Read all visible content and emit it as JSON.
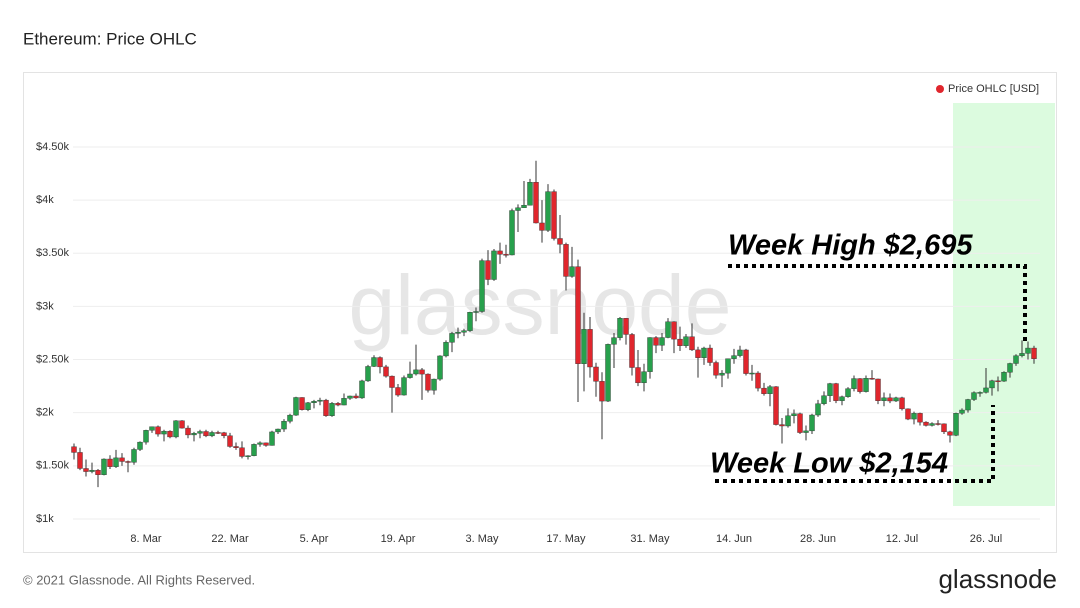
{
  "chart_data": {
    "type": "candlestick",
    "title": "Ethereum: Price OHLC",
    "categories": [
      null,
      null,
      null,
      null,
      null,
      null,
      null,
      null,
      null,
      null,
      null,
      null,
      "8. Mar",
      null,
      null,
      null,
      null,
      null,
      null,
      null,
      null,
      null,
      null,
      null,
      null,
      null,
      "22. Mar",
      null,
      null,
      null,
      null,
      null,
      null,
      null,
      null,
      null,
      null,
      null,
      null,
      null,
      "5. Apr",
      null,
      null,
      null,
      null,
      null,
      null,
      null,
      null,
      null,
      null,
      null,
      null,
      null,
      "19. Apr",
      null,
      null,
      null,
      null,
      null,
      null,
      null,
      null,
      null,
      null,
      null,
      null,
      null,
      "3. May",
      null,
      null,
      null,
      null,
      null,
      null,
      null,
      null,
      null,
      null,
      null,
      null,
      null,
      "17. May",
      null,
      null,
      null,
      null,
      null,
      null,
      null,
      null,
      null,
      null,
      null,
      null,
      null,
      "31. May",
      null,
      null,
      null,
      null,
      null,
      null,
      null,
      null,
      null,
      null,
      null,
      null,
      null,
      "14. Jun",
      null,
      null,
      null,
      null,
      null,
      null,
      null,
      null,
      null,
      null,
      null,
      null,
      null,
      "28. Jun",
      null,
      null,
      null,
      null,
      null,
      null,
      null,
      null,
      null,
      null,
      null,
      null,
      null,
      "12. Jul",
      null,
      null,
      null,
      null,
      null,
      null,
      null,
      null,
      null,
      null,
      null,
      null,
      null,
      "26. Jul",
      null,
      null,
      null,
      null,
      null,
      null,
      null,
      null
    ],
    "series": [
      {
        "name": "Price OHLC [USD]",
        "color": "#e0262d",
        "up_color": "#27a04c",
        "open": [
          1680,
          1626,
          1475,
          1446,
          1459,
          1416,
          1564,
          1492,
          1575,
          1541,
          1533,
          1654,
          1723,
          1834,
          1868,
          1799,
          1826,
          1772,
          1924,
          1855,
          1791,
          1806,
          1823,
          1782,
          1814,
          1812,
          1783,
          1682,
          1670,
          1588,
          1595,
          1702,
          1716,
          1692,
          1819,
          1846,
          1919,
          1977,
          2143,
          2028,
          2093,
          2107,
          2118,
          1971,
          2088,
          2072,
          2135,
          2157,
          2139,
          2299,
          2435,
          2519,
          2431,
          2344,
          2237,
          2166,
          2330,
          2364,
          2403,
          2363,
          2211,
          2316,
          2534,
          2662,
          2746,
          2757,
          2772,
          2945,
          2952,
          3431,
          3253,
          3522,
          3490,
          3484,
          3902,
          3928,
          3952,
          4168,
          3785,
          3715,
          4080,
          3639,
          3584,
          3282,
          3374,
          2460,
          2784,
          2430,
          2295,
          2109,
          2643,
          2706,
          2888,
          2736,
          2425,
          2281,
          2386,
          2707,
          2634,
          2707,
          2856,
          2692,
          2630,
          2715,
          2591,
          2517,
          2608,
          2472,
          2353,
          2372,
          2508,
          2537,
          2590,
          2368,
          2373,
          2231,
          2178,
          2245,
          1888,
          1875,
          1971,
          1990,
          1813,
          1829,
          1978,
          2084,
          2160,
          2274,
          2113,
          2150,
          2226,
          2321,
          2198,
          2324,
          2317,
          2112,
          2140,
          2110,
          2140,
          2036,
          1940,
          1994,
          1911,
          1880,
          1898,
          1895,
          1820,
          1787,
          1995,
          2025,
          2124,
          2189,
          2191,
          2233,
          2300,
          2297,
          2380,
          2463,
          2536,
          2558,
          2608
        ],
        "high": [
          1710,
          1670,
          1560,
          1530,
          1470,
          1570,
          1600,
          1650,
          1620,
          1550,
          1670,
          1730,
          1840,
          1870,
          1880,
          1840,
          1835,
          1930,
          1930,
          1880,
          1820,
          1840,
          1840,
          1830,
          1830,
          1820,
          1810,
          1720,
          1730,
          1600,
          1710,
          1730,
          1720,
          1830,
          1850,
          1940,
          1990,
          2150,
          2145,
          2100,
          2120,
          2140,
          2130,
          2100,
          2100,
          2180,
          2160,
          2180,
          2310,
          2450,
          2540,
          2530,
          2450,
          2350,
          2270,
          2350,
          2480,
          2640,
          2420,
          2370,
          2320,
          2540,
          2680,
          2760,
          2800,
          2790,
          2950,
          2990,
          3450,
          3530,
          3540,
          3600,
          3580,
          3920,
          3960,
          4180,
          4200,
          4370,
          4000,
          4150,
          4100,
          3860,
          3600,
          3560,
          3440,
          2940,
          2900,
          2470,
          2380,
          2650,
          2750,
          2900,
          2890,
          2750,
          2590,
          2460,
          2710,
          2720,
          2750,
          2890,
          2860,
          2810,
          2740,
          2840,
          2620,
          2620,
          2640,
          2490,
          2400,
          2510,
          2600,
          2630,
          2600,
          2450,
          2390,
          2280,
          2260,
          2250,
          1950,
          2040,
          2030,
          2000,
          1880,
          1990,
          2120,
          2200,
          2280,
          2280,
          2160,
          2240,
          2350,
          2325,
          2350,
          2400,
          2320,
          2190,
          2180,
          2150,
          2150,
          2040,
          2010,
          2000,
          1920,
          1910,
          1930,
          1900,
          1830,
          2000,
          2040,
          2130,
          2200,
          2200,
          2420,
          2310,
          2340,
          2390,
          2470,
          2550,
          2680,
          2670,
          2630
        ],
        "low": [
          1560,
          1460,
          1400,
          1430,
          1300,
          1410,
          1470,
          1480,
          1500,
          1440,
          1510,
          1640,
          1700,
          1810,
          1775,
          1730,
          1760,
          1760,
          1850,
          1760,
          1730,
          1760,
          1770,
          1770,
          1800,
          1760,
          1670,
          1650,
          1570,
          1560,
          1590,
          1680,
          1680,
          1690,
          1800,
          1820,
          1900,
          1970,
          2020,
          2015,
          2040,
          2070,
          1960,
          1960,
          2060,
          2070,
          2120,
          2130,
          2130,
          2290,
          2430,
          2370,
          2330,
          2000,
          2150,
          2160,
          2320,
          2350,
          2120,
          2190,
          2170,
          2300,
          2520,
          2570,
          2700,
          2720,
          2760,
          2860,
          2940,
          3200,
          3240,
          3400,
          3460,
          3480,
          3700,
          3930,
          3950,
          3780,
          3600,
          3700,
          3620,
          3500,
          3150,
          3270,
          2100,
          2200,
          2330,
          2150,
          1750,
          2100,
          2420,
          2680,
          2640,
          2350,
          2250,
          2200,
          2320,
          2560,
          2580,
          2700,
          2560,
          2580,
          2610,
          2580,
          2330,
          2450,
          2440,
          2320,
          2240,
          2320,
          2460,
          2520,
          2350,
          2300,
          2200,
          2160,
          2060,
          1880,
          1710,
          1860,
          1900,
          1800,
          1740,
          1800,
          1960,
          2070,
          2100,
          2090,
          2070,
          2140,
          2200,
          2180,
          2190,
          2310,
          2080,
          2060,
          2090,
          2100,
          2020,
          1930,
          1890,
          1880,
          1870,
          1870,
          1880,
          1800,
          1720,
          1780,
          1980,
          2000,
          2110,
          2150,
          2180,
          2160,
          2200,
          2290,
          2330,
          2440,
          2520,
          2500,
          2460
        ],
        "close": [
          1626,
          1475,
          1446,
          1459,
          1416,
          1564,
          1492,
          1575,
          1541,
          1533,
          1654,
          1723,
          1834,
          1868,
          1799,
          1826,
          1772,
          1924,
          1855,
          1791,
          1806,
          1823,
          1782,
          1814,
          1812,
          1783,
          1682,
          1670,
          1588,
          1595,
          1702,
          1716,
          1692,
          1819,
          1846,
          1919,
          1977,
          2143,
          2028,
          2093,
          2107,
          2118,
          1971,
          2088,
          2072,
          2135,
          2157,
          2139,
          2299,
          2435,
          2519,
          2431,
          2344,
          2237,
          2166,
          2330,
          2364,
          2403,
          2363,
          2211,
          2316,
          2534,
          2662,
          2746,
          2757,
          2772,
          2945,
          2952,
          3431,
          3253,
          3522,
          3490,
          3484,
          3902,
          3928,
          3952,
          4168,
          3785,
          3715,
          4080,
          3639,
          3584,
          3282,
          3374,
          2460,
          2784,
          2430,
          2295,
          2109,
          2643,
          2706,
          2888,
          2736,
          2425,
          2281,
          2386,
          2707,
          2634,
          2707,
          2856,
          2692,
          2630,
          2715,
          2591,
          2517,
          2608,
          2472,
          2353,
          2372,
          2508,
          2537,
          2590,
          2368,
          2373,
          2231,
          2178,
          2245,
          1888,
          1875,
          1971,
          1990,
          1813,
          1829,
          1978,
          2084,
          2160,
          2274,
          2113,
          2150,
          2226,
          2321,
          2198,
          2324,
          2317,
          2112,
          2140,
          2110,
          2140,
          2036,
          1940,
          1994,
          1911,
          1880,
          1898,
          1895,
          1820,
          1787,
          1995,
          2025,
          2124,
          2189,
          2191,
          2233,
          2300,
          2297,
          2380,
          2463,
          2536,
          2558,
          2608,
          2507
        ]
      }
    ],
    "ylim": [
      900,
      5100
    ],
    "yticks": [
      {
        "value": 1000,
        "label": "$1k"
      },
      {
        "value": 1500,
        "label": "$1.50k"
      },
      {
        "value": 2000,
        "label": "$2k"
      },
      {
        "value": 2500,
        "label": "$2.50k"
      },
      {
        "value": 3000,
        "label": "$3k"
      },
      {
        "value": 3500,
        "label": "$3.50k"
      },
      {
        "value": 4000,
        "label": "$4k"
      },
      {
        "value": 4500,
        "label": "$4.50k"
      }
    ],
    "grid": true,
    "legend": "top-right",
    "annotations": [
      "Week High $2,695",
      "Week Low $2,154"
    ]
  },
  "watermark": "glassnode",
  "copyright": "© 2021 Glassnode. All Rights Reserved.",
  "logo": "glassnode"
}
